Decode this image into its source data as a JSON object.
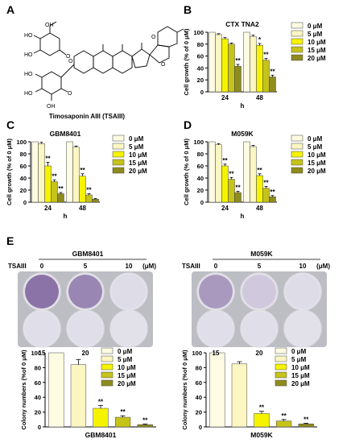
{
  "panels": {
    "A": {
      "letter": "A",
      "caption": "Timosaponin AIII (TSAIII)"
    },
    "B": {
      "letter": "B"
    },
    "C": {
      "letter": "C"
    },
    "D": {
      "letter": "D"
    },
    "E": {
      "letter": "E",
      "plates": [
        {
          "title": "GBM8401",
          "row_label": "TSAIII",
          "unit": "(μM)",
          "top_doses": [
            "0",
            "5",
            "10"
          ],
          "bottom_doses": [
            "15",
            "20"
          ]
        },
        {
          "title": "M059K",
          "row_label": "TSAIII",
          "unit": "(μM)",
          "top_doses": [
            "0",
            "5",
            "10"
          ],
          "bottom_doses": [
            "15",
            "20"
          ]
        }
      ]
    }
  },
  "legend": [
    "0 μM",
    "5 μM",
    "10 μM",
    "15 μM",
    "20 μM"
  ],
  "colors": {
    "0": "#fdfbe2",
    "5": "#fbf6c2",
    "10": "#f6f300",
    "15": "#c6c31a",
    "20": "#8f8c1e"
  },
  "chart_data": [
    {
      "type": "bar",
      "id": "B",
      "title": "CTX TNA2",
      "ylabel": "Cell growth (% of 0 μM)",
      "xlabel": "h",
      "categories": [
        "24",
        "48"
      ],
      "ylim": [
        0,
        100
      ],
      "yticks": [
        "0",
        "20",
        "40",
        "60",
        "80",
        "100"
      ],
      "series": [
        {
          "name": "0 μM",
          "values": [
            100,
            100
          ],
          "errors": [
            0,
            0
          ],
          "sig": [
            "",
            ""
          ]
        },
        {
          "name": "5 μM",
          "values": [
            96,
            93
          ],
          "errors": [
            1.5,
            2
          ],
          "sig": [
            "",
            ""
          ]
        },
        {
          "name": "10 μM",
          "values": [
            89,
            78
          ],
          "errors": [
            2,
            3
          ],
          "sig": [
            "",
            "*"
          ]
        },
        {
          "name": "15 μM",
          "values": [
            80,
            53
          ],
          "errors": [
            2,
            3
          ],
          "sig": [
            "",
            "**"
          ]
        },
        {
          "name": "20 μM",
          "values": [
            43,
            25
          ],
          "errors": [
            3,
            3
          ],
          "sig": [
            "**",
            "**"
          ]
        }
      ]
    },
    {
      "type": "bar",
      "id": "C",
      "title": "GBM8401",
      "ylabel": "Cell growth (% of 0 μM)",
      "xlabel": "h",
      "categories": [
        "24",
        "48"
      ],
      "ylim": [
        0,
        100
      ],
      "yticks": [
        "0",
        "20",
        "40",
        "60",
        "80",
        "100"
      ],
      "series": [
        {
          "name": "0 μM",
          "values": [
            100,
            100
          ],
          "errors": [
            0,
            0
          ],
          "sig": [
            "",
            ""
          ]
        },
        {
          "name": "5 μM",
          "values": [
            97,
            91
          ],
          "errors": [
            2,
            2
          ],
          "sig": [
            "",
            ""
          ]
        },
        {
          "name": "10 μM",
          "values": [
            60,
            43
          ],
          "errors": [
            6,
            4
          ],
          "sig": [
            "**",
            "**"
          ]
        },
        {
          "name": "15 μM",
          "values": [
            34,
            12
          ],
          "errors": [
            3,
            2
          ],
          "sig": [
            "**",
            "**"
          ]
        },
        {
          "name": "20 μM",
          "values": [
            14,
            5
          ],
          "errors": [
            2,
            1
          ],
          "sig": [
            "**",
            ""
          ]
        }
      ]
    },
    {
      "type": "bar",
      "id": "D",
      "title": "M059K",
      "ylabel": "Cell growth (% of 0 μM)",
      "xlabel": "h",
      "categories": [
        "24",
        "48"
      ],
      "ylim": [
        0,
        100
      ],
      "yticks": [
        "0",
        "20",
        "40",
        "60",
        "80",
        "100"
      ],
      "series": [
        {
          "name": "0 μM",
          "values": [
            100,
            100
          ],
          "errors": [
            0,
            0
          ],
          "sig": [
            "",
            ""
          ]
        },
        {
          "name": "5 μM",
          "values": [
            95,
            92
          ],
          "errors": [
            2,
            2
          ],
          "sig": [
            "",
            ""
          ]
        },
        {
          "name": "10 μM",
          "values": [
            60,
            44
          ],
          "errors": [
            3,
            3
          ],
          "sig": [
            "**",
            "**"
          ]
        },
        {
          "name": "15 μM",
          "values": [
            38,
            23
          ],
          "errors": [
            3,
            3
          ],
          "sig": [
            "**",
            "**"
          ]
        },
        {
          "name": "20 μM",
          "values": [
            16,
            9
          ],
          "errors": [
            2,
            2
          ],
          "sig": [
            "**",
            "**"
          ]
        }
      ]
    },
    {
      "type": "bar",
      "id": "E1",
      "ylabel": "Colony numbers (%of 0 μM)",
      "xlabel": "GBM8401",
      "categories": [
        "0 μM",
        "5 μM",
        "10 μM",
        "15 μM",
        "20 μM"
      ],
      "ylim": [
        0,
        100
      ],
      "yticks": [
        "0",
        "20",
        "40",
        "60",
        "80",
        "100"
      ],
      "values": [
        100,
        84,
        25,
        13,
        3
      ],
      "errors": [
        0,
        7,
        4,
        2,
        1
      ],
      "sig": [
        "",
        "",
        "**",
        "**",
        "**"
      ]
    },
    {
      "type": "bar",
      "id": "E2",
      "ylabel": "Colony numbers (%of 0 μM)",
      "xlabel": "M059K",
      "categories": [
        "0 μM",
        "5 μM",
        "10 μM",
        "15 μM",
        "20 μM"
      ],
      "ylim": [
        0,
        100
      ],
      "yticks": [
        "0",
        "20",
        "40",
        "60",
        "80",
        "100"
      ],
      "values": [
        100,
        85,
        18,
        8,
        4
      ],
      "errors": [
        0,
        3,
        3,
        2,
        1
      ],
      "sig": [
        "",
        "",
        "**",
        "**",
        "**"
      ]
    }
  ]
}
